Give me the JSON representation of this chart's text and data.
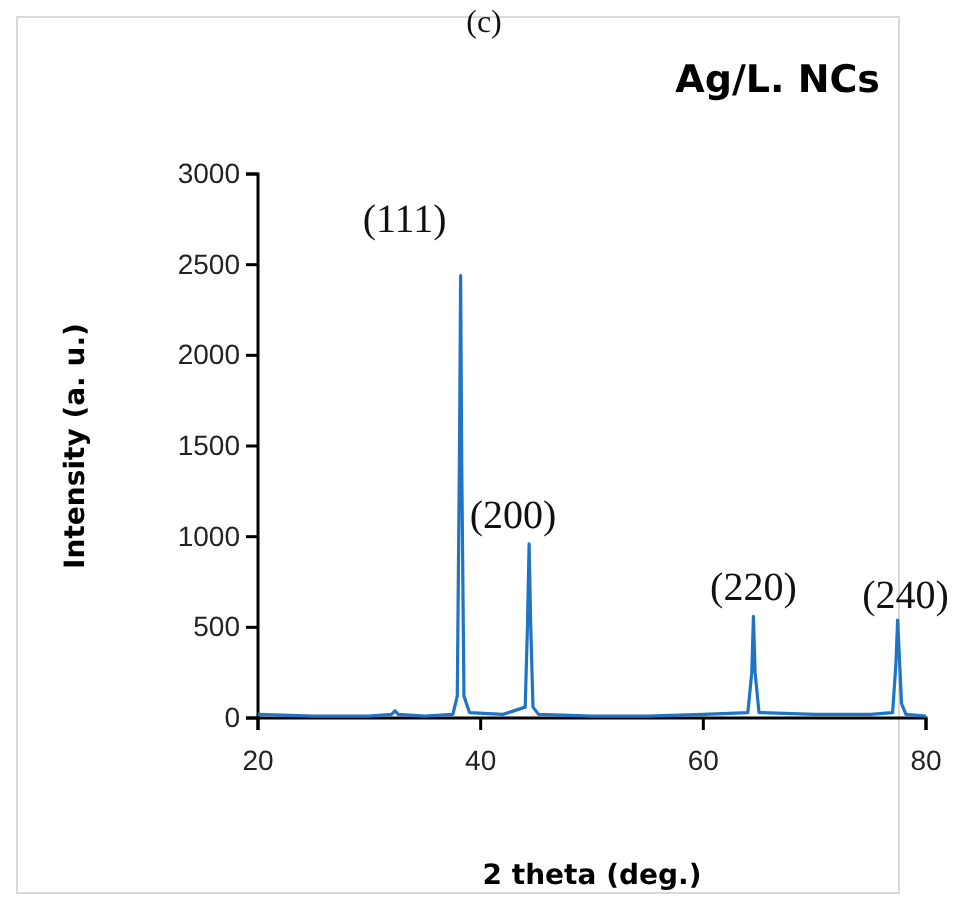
{
  "chart_data": {
    "type": "line",
    "title": "Ag/L. NCs",
    "xlabel": "2 theta (deg.)",
    "ylabel": "Intensity (a. u.)",
    "x": [
      20,
      25,
      30,
      32,
      32.3,
      32.6,
      35,
      37.5,
      37.9,
      38.1,
      38.2,
      38.3,
      38.5,
      39,
      42,
      44,
      44.2,
      44.35,
      44.5,
      44.7,
      45.2,
      50,
      55,
      60,
      64,
      64.35,
      64.5,
      64.65,
      65,
      70,
      75,
      77,
      77.3,
      77.45,
      77.6,
      77.8,
      78.2,
      80
    ],
    "series": [
      {
        "color": "#1f74c6",
        "values": [
          20,
          10,
          10,
          20,
          40,
          20,
          10,
          20,
          120,
          1500,
          2440,
          1400,
          120,
          30,
          20,
          60,
          500,
          960,
          500,
          60,
          20,
          10,
          10,
          20,
          30,
          250,
          560,
          250,
          30,
          20,
          20,
          30,
          300,
          540,
          350,
          80,
          20,
          10
        ]
      }
    ],
    "xlim": [
      20,
      80
    ],
    "xticks": [
      20,
      40,
      60,
      80
    ],
    "ylim": [
      0,
      3000
    ],
    "yticks": [
      0,
      500,
      1000,
      1500,
      2000,
      2500,
      3000
    ],
    "grid": false,
    "marker": "none",
    "line_style": "solid",
    "annotations": [
      "(c)",
      {
        "text": "(111)",
        "x": 38.2,
        "y": 2440
      },
      {
        "text": "(200)",
        "x": 44.35,
        "y": 960
      },
      {
        "text": "(220)",
        "x": 64.5,
        "y": 560
      },
      {
        "text": "(240)",
        "x": 77.45,
        "y": 540
      }
    ]
  }
}
